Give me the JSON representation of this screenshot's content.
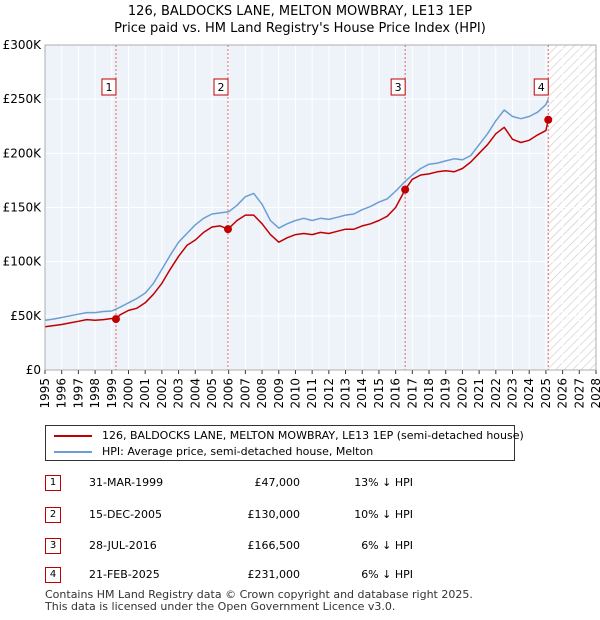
{
  "chart_data": {
    "type": "line",
    "title": "126, BALDOCKS LANE, MELTON MOWBRAY, LE13 1EP",
    "subtitle": "Price paid vs. HM Land Registry's House Price Index (HPI)",
    "xlabel": "",
    "ylabel": "",
    "xlim": [
      1995,
      2028
    ],
    "ylim": [
      0,
      300000
    ],
    "y_ticks": [
      {
        "value": 0,
        "label": "£0"
      },
      {
        "value": 50000,
        "label": "£50K"
      },
      {
        "value": 100000,
        "label": "£100K"
      },
      {
        "value": 150000,
        "label": "£150K"
      },
      {
        "value": 200000,
        "label": "£200K"
      },
      {
        "value": 250000,
        "label": "£250K"
      },
      {
        "value": 300000,
        "label": "£300K"
      }
    ],
    "x_ticks": [
      "1995",
      "1996",
      "1997",
      "1998",
      "1999",
      "2000",
      "2001",
      "2002",
      "2003",
      "2004",
      "2005",
      "2006",
      "2007",
      "2008",
      "2009",
      "2010",
      "2011",
      "2012",
      "2013",
      "2014",
      "2015",
      "2016",
      "2017",
      "2018",
      "2019",
      "2020",
      "2021",
      "2022",
      "2023",
      "2024",
      "2025",
      "2026",
      "2027",
      "2028"
    ],
    "grid": true,
    "legend_position": "below",
    "series": [
      {
        "name": "126, BALDOCKS LANE, MELTON MOWBRAY, LE13 1EP (semi-detached house)",
        "color": "#c00000",
        "x": [
          1995.0,
          1995.5,
          1996.0,
          1996.5,
          1997.0,
          1997.5,
          1998.0,
          1998.5,
          1999.0,
          1999.25,
          1999.5,
          2000.0,
          2000.5,
          2001.0,
          2001.5,
          2002.0,
          2002.5,
          2003.0,
          2003.5,
          2004.0,
          2004.5,
          2005.0,
          2005.5,
          2005.96,
          2006.5,
          2007.0,
          2007.5,
          2008.0,
          2008.5,
          2009.0,
          2009.5,
          2010.0,
          2010.5,
          2011.0,
          2011.5,
          2012.0,
          2012.5,
          2013.0,
          2013.5,
          2014.0,
          2014.5,
          2015.0,
          2015.5,
          2016.0,
          2016.57,
          2017.0,
          2017.5,
          2018.0,
          2018.5,
          2019.0,
          2019.5,
          2020.0,
          2020.5,
          2021.0,
          2021.5,
          2022.0,
          2022.5,
          2023.0,
          2023.5,
          2024.0,
          2024.5,
          2025.0,
          2025.14
        ],
        "values": [
          40000,
          41000,
          42000,
          43500,
          45000,
          46500,
          46000,
          46500,
          47500,
          47000,
          51000,
          55000,
          57000,
          62000,
          70000,
          80000,
          93000,
          105000,
          115000,
          120000,
          127000,
          132000,
          133000,
          130000,
          138000,
          143000,
          143000,
          135000,
          125000,
          118000,
          122000,
          125000,
          126000,
          125000,
          127000,
          126000,
          128000,
          130000,
          130000,
          133000,
          135000,
          138000,
          142000,
          150000,
          166500,
          176000,
          180000,
          181000,
          183000,
          184000,
          183000,
          186000,
          192000,
          200000,
          208000,
          218000,
          224000,
          213000,
          210000,
          212000,
          217000,
          221000,
          231000
        ]
      },
      {
        "name": "HPI: Average price, semi-detached house, Melton",
        "color": "#6a9fd4",
        "x": [
          1995.0,
          1995.5,
          1996.0,
          1996.5,
          1997.0,
          1997.5,
          1998.0,
          1998.5,
          1999.0,
          1999.5,
          2000.0,
          2000.5,
          2001.0,
          2001.5,
          2002.0,
          2002.5,
          2003.0,
          2003.5,
          2004.0,
          2004.5,
          2005.0,
          2005.5,
          2006.0,
          2006.5,
          2007.0,
          2007.5,
          2008.0,
          2008.5,
          2009.0,
          2009.5,
          2010.0,
          2010.5,
          2011.0,
          2011.5,
          2012.0,
          2012.5,
          2013.0,
          2013.5,
          2014.0,
          2014.5,
          2015.0,
          2015.5,
          2016.0,
          2016.5,
          2017.0,
          2017.5,
          2018.0,
          2018.5,
          2019.0,
          2019.5,
          2020.0,
          2020.5,
          2021.0,
          2021.5,
          2022.0,
          2022.5,
          2023.0,
          2023.5,
          2024.0,
          2024.5,
          2025.0,
          2025.14
        ],
        "values": [
          46000,
          47000,
          48500,
          50000,
          51500,
          53000,
          53000,
          54000,
          54500,
          58000,
          62000,
          66000,
          71000,
          80000,
          93000,
          106000,
          118000,
          126000,
          134000,
          140000,
          144000,
          145000,
          146000,
          152000,
          160000,
          163000,
          153000,
          138000,
          131000,
          135000,
          138000,
          140000,
          138000,
          140000,
          139000,
          141000,
          143000,
          144000,
          148000,
          151000,
          155000,
          158000,
          165000,
          173000,
          180000,
          186000,
          190000,
          191000,
          193000,
          195000,
          194000,
          198000,
          208000,
          218000,
          230000,
          240000,
          234000,
          232000,
          234000,
          238000,
          245000,
          250000
        ]
      }
    ],
    "sales": [
      {
        "num": "1",
        "x": 1999.25,
        "value": 47000
      },
      {
        "num": "2",
        "x": 2005.96,
        "value": 130000
      },
      {
        "num": "3",
        "x": 2016.57,
        "value": 166500
      },
      {
        "num": "4",
        "x": 2025.14,
        "value": 231000
      }
    ]
  },
  "legend": {
    "red_label": "126, BALDOCKS LANE, MELTON MOWBRAY, LE13 1EP (semi-detached house)",
    "blue_label": "HPI: Average price, semi-detached house, Melton"
  },
  "transactions": [
    {
      "num": "1",
      "date": "31-MAR-1999",
      "price": "£47,000",
      "hpi": "13% ↓ HPI"
    },
    {
      "num": "2",
      "date": "15-DEC-2005",
      "price": "£130,000",
      "hpi": "10% ↓ HPI"
    },
    {
      "num": "3",
      "date": "28-JUL-2016",
      "price": "£166,500",
      "hpi": "6% ↓ HPI"
    },
    {
      "num": "4",
      "date": "21-FEB-2025",
      "price": "£231,000",
      "hpi": "6% ↓ HPI"
    }
  ],
  "footer": {
    "line1": "Contains HM Land Registry data © Crown copyright and database right 2025.",
    "line2": "This data is licensed under the Open Government Licence v3.0."
  }
}
